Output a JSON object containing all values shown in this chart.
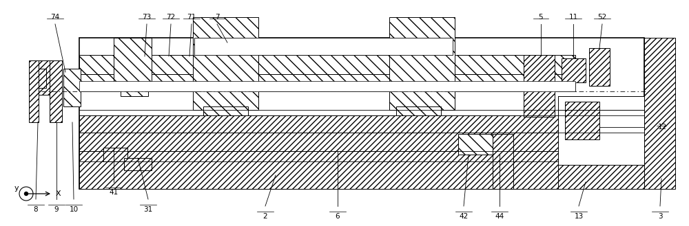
{
  "bg_color": "#ffffff",
  "figsize": [
    10.0,
    3.29
  ],
  "dpi": 100,
  "font_size": 7.5,
  "lw": 0.7
}
